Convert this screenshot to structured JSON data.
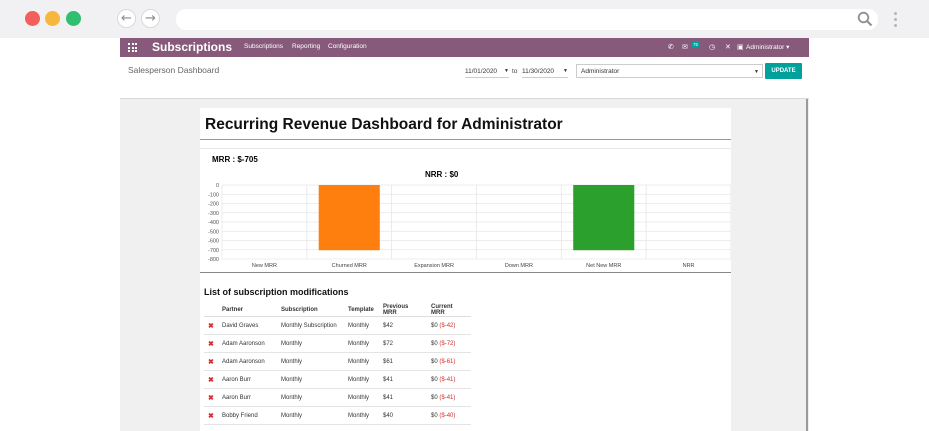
{
  "browser": {
    "back_icon": "arrow-left-icon",
    "forward_icon": "arrow-right-icon",
    "search_icon": "search-icon"
  },
  "app": {
    "title": "Subscriptions",
    "menu": [
      "Subscriptions",
      "Reporting",
      "Configuration"
    ],
    "messages_badge": "75",
    "user": "Administrator",
    "brand_color": "#875a7b"
  },
  "control_panel": {
    "breadcrumb": "Salesperson Dashboard",
    "date_from": "11/01/2020",
    "to_label": "to",
    "date_to": "11/30/2020",
    "salesperson": "Administrator",
    "update_label": "UPDATE"
  },
  "dashboard": {
    "title": "Recurring Revenue Dashboard for Administrator",
    "mrr_label": "MRR : $-705",
    "nrr_label": "NRR : $0"
  },
  "chart_data": {
    "type": "bar",
    "categories": [
      "New MRR",
      "Churned MRR",
      "Expansion MRR",
      "Down MRR",
      "Net New MRR",
      "NRR"
    ],
    "values": [
      0,
      -705,
      0,
      0,
      -705,
      0
    ],
    "colors": [
      "#1f77b4",
      "#ff7f0e",
      "#1f77b4",
      "#1f77b4",
      "#2ca02c",
      "#1f77b4"
    ],
    "yticks": [
      0,
      -100,
      -200,
      -300,
      -400,
      -500,
      -600,
      -700,
      -800
    ],
    "ylim": [
      -800,
      0
    ],
    "grid": true
  },
  "modifications": {
    "title": "List of subscription modifications",
    "columns": [
      "Partner",
      "Subscription",
      "Template",
      "Previous MRR",
      "Current MRR"
    ],
    "rows": [
      {
        "partner": "David Graves",
        "subscription": "Monthly Subscription",
        "template": "Monthly",
        "previous": "$42",
        "current": "$0",
        "delta": "($-42)"
      },
      {
        "partner": "Adam Aaronson",
        "subscription": "Monthly",
        "template": "Monthly",
        "previous": "$72",
        "current": "$0",
        "delta": "($-72)"
      },
      {
        "partner": "Adam Aaronson",
        "subscription": "Monthly",
        "template": "Monthly",
        "previous": "$61",
        "current": "$0",
        "delta": "($-61)"
      },
      {
        "partner": "Aaron Burr",
        "subscription": "Monthly",
        "template": "Monthly",
        "previous": "$41",
        "current": "$0",
        "delta": "($-41)"
      },
      {
        "partner": "Aaron Burr",
        "subscription": "Monthly",
        "template": "Monthly",
        "previous": "$41",
        "current": "$0",
        "delta": "($-41)"
      },
      {
        "partner": "Bobby Friend",
        "subscription": "Monthly",
        "template": "Monthly",
        "previous": "$40",
        "current": "$0",
        "delta": "($-40)"
      }
    ]
  }
}
